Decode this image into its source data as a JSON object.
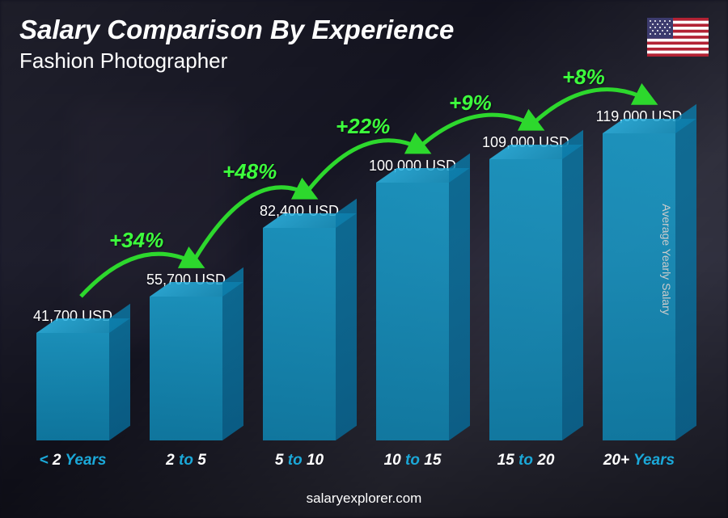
{
  "header": {
    "title": "Salary Comparison By Experience",
    "subtitle": "Fashion Photographer"
  },
  "y_axis_label": "Average Yearly Salary",
  "footer": "salaryexplorer.com",
  "chart": {
    "type": "bar",
    "bar_color_front": "#1ba8d8",
    "bar_color_top": "#2bb8e8",
    "bar_color_side": "#0a7aa8",
    "bar_opacity": 0.82,
    "pct_color": "#3dff3d",
    "arrow_color": "#2dd82d",
    "label_accent_color": "#1ba8d8",
    "text_color": "#ffffff",
    "max_value": 119000,
    "bars": [
      {
        "label_prefix": "< ",
        "label_num": "2",
        "label_suffix": " Years",
        "value": 41700,
        "value_label": "41,700 USD"
      },
      {
        "label_prefix": "",
        "label_num": "2",
        "label_mid": " to ",
        "label_num2": "5",
        "label_suffix": "",
        "value": 55700,
        "value_label": "55,700 USD",
        "pct": "+34%"
      },
      {
        "label_prefix": "",
        "label_num": "5",
        "label_mid": " to ",
        "label_num2": "10",
        "label_suffix": "",
        "value": 82400,
        "value_label": "82,400 USD",
        "pct": "+48%"
      },
      {
        "label_prefix": "",
        "label_num": "10",
        "label_mid": " to ",
        "label_num2": "15",
        "label_suffix": "",
        "value": 100000,
        "value_label": "100,000 USD",
        "pct": "+22%"
      },
      {
        "label_prefix": "",
        "label_num": "15",
        "label_mid": " to ",
        "label_num2": "20",
        "label_suffix": "",
        "value": 109000,
        "value_label": "109,000 USD",
        "pct": "+9%"
      },
      {
        "label_prefix": "",
        "label_num": "20+",
        "label_suffix": " Years",
        "value": 119000,
        "value_label": "119,000 USD",
        "pct": "+8%"
      }
    ]
  },
  "flag": {
    "stripe_red": "#b22234",
    "stripe_white": "#ffffff",
    "canton": "#3c3b6e"
  }
}
